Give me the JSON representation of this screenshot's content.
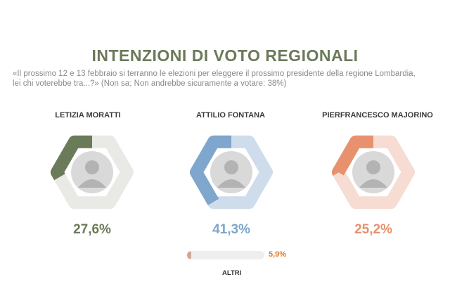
{
  "title": "INTENZIONI DI VOTO REGIONALI",
  "question_line1": "«Il prossimo 12 e 13 febbraio si terranno le elezioni per eleggere il prossimo presidente della regione Lombardia,",
  "question_line2": "lei chi voterebbe tra...?»  (Non sa; Non andrebbe sicuramente a votare: 38%)",
  "chart_data": {
    "type": "pie",
    "unit": "%",
    "candidates": [
      {
        "name": "LETIZIA MORATTI",
        "value": 27.6,
        "label": "27,6%",
        "color": "#6b7a59",
        "track_color": "#e9eae6",
        "photo_icon": "candidate-photo-icon"
      },
      {
        "name": "ATTILIO FONTANA",
        "value": 41.3,
        "label": "41,3%",
        "color": "#7fa6cc",
        "track_color": "#cfdceb",
        "photo_icon": "candidate-photo-icon"
      },
      {
        "name": "PIERFRANCESCO MAJORINO",
        "value": 25.2,
        "label": "25,2%",
        "color": "#e8916f",
        "track_color": "#f6dcd2",
        "photo_icon": "candidate-photo-icon"
      }
    ],
    "others": {
      "name": "ALTRI",
      "value": 5.9,
      "label": "5,9%",
      "color": "#d2a598"
    }
  }
}
